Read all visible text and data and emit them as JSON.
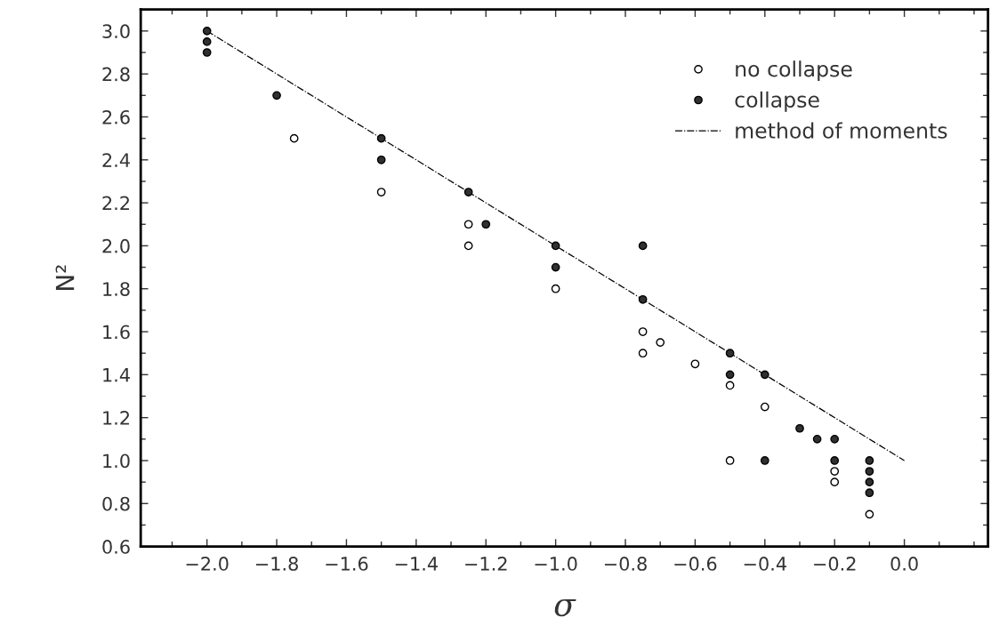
{
  "chart_data": {
    "type": "scatter",
    "xlabel": "σ",
    "ylabel": "N²",
    "series": [
      {
        "name": "no collapse",
        "marker": "circle",
        "color": "#ffffff",
        "x": [
          -1.75,
          -1.5,
          -1.25,
          -1.25,
          -1.0,
          -0.75,
          -0.75,
          -0.7,
          -0.6,
          -0.5,
          -0.5,
          -0.4,
          -0.2,
          -0.2,
          -0.1
        ],
        "values": [
          2.5,
          2.25,
          2.1,
          2.0,
          1.8,
          1.6,
          1.5,
          1.55,
          1.45,
          1.35,
          1.0,
          1.25,
          0.95,
          0.9,
          0.75
        ]
      },
      {
        "name": "collapse",
        "marker": "circle",
        "color": "#303030",
        "x": [
          -2.0,
          -2.0,
          -2.0,
          -1.8,
          -1.5,
          -1.5,
          -1.25,
          -1.2,
          -1.0,
          -1.0,
          -0.75,
          -0.75,
          -0.5,
          -0.5,
          -0.4,
          -0.4,
          -0.3,
          -0.25,
          -0.2,
          -0.2,
          -0.1,
          -0.1,
          -0.1,
          -0.1
        ],
        "values": [
          3.0,
          2.95,
          2.9,
          2.7,
          2.5,
          2.4,
          2.25,
          2.1,
          2.0,
          1.9,
          2.0,
          1.75,
          1.5,
          1.4,
          1.4,
          1.0,
          1.15,
          1.1,
          1.1,
          1.0,
          1.0,
          0.95,
          0.9,
          0.85
        ]
      },
      {
        "name": "method of moments",
        "type": "line",
        "marker": "none",
        "line_style": "dashdot",
        "color": "#000000",
        "x": [
          -2.0,
          0.0
        ],
        "values": [
          3.0,
          1.0
        ]
      }
    ],
    "xlim": [
      -2.19,
      0.24
    ],
    "ylim": [
      0.6,
      3.1
    ],
    "xticks": [
      {
        "value": -2.1,
        "label": null
      },
      {
        "value": -2.0,
        "label": "−2.0"
      },
      {
        "value": -1.9,
        "label": null
      },
      -1.8,
      {
        "value": -1.7,
        "label": null
      },
      -1.6,
      {
        "value": -1.5,
        "label": null
      },
      -1.4,
      {
        "value": -1.3,
        "label": null
      },
      -1.2,
      {
        "value": -1.1,
        "label": null
      },
      {
        "value": -1.0,
        "label": "−1.0"
      },
      {
        "value": -0.9,
        "label": null
      },
      -0.8,
      {
        "value": -0.7,
        "label": null
      },
      -0.6,
      {
        "value": -0.5,
        "label": null
      },
      -0.4,
      {
        "value": -0.3,
        "label": null
      },
      -0.2,
      {
        "value": -0.1,
        "label": null
      },
      {
        "value": 0.0,
        "label": "0.0"
      },
      {
        "value": 0.1,
        "label": null
      },
      {
        "value": 0.2,
        "label": null
      }
    ],
    "yticks": [
      0.6,
      {
        "value": 0.7,
        "label": null
      },
      0.8,
      {
        "value": 0.9,
        "label": null
      },
      {
        "value": 1.0,
        "label": "1.0"
      },
      {
        "value": 1.1,
        "label": null
      },
      1.2,
      {
        "value": 1.3,
        "label": null
      },
      1.4,
      {
        "value": 1.5,
        "label": null
      },
      1.6,
      {
        "value": 1.7,
        "label": null
      },
      1.8,
      {
        "value": 1.9,
        "label": null
      },
      {
        "value": 2.0,
        "label": "2.0"
      },
      {
        "value": 2.1,
        "label": null
      },
      2.2,
      {
        "value": 2.3,
        "label": null
      },
      2.4,
      {
        "value": 2.5,
        "label": null
      },
      2.6,
      {
        "value": 2.7,
        "label": null
      },
      2.8,
      {
        "value": 2.9,
        "label": null
      },
      {
        "value": 3.0,
        "label": "3.0"
      }
    ],
    "grid": false,
    "legend": "top right"
  }
}
